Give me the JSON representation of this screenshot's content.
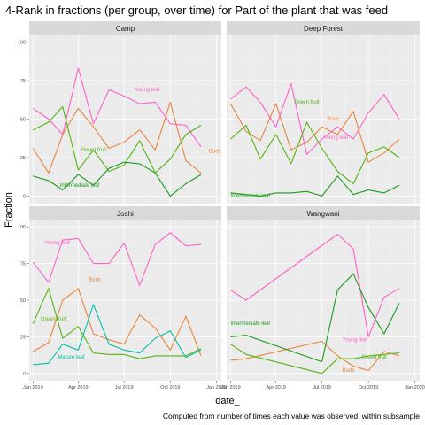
{
  "chart_data": {
    "type": "line",
    "title": "4-Rank in fractions (per group, over time) for Part of the plant that was feed",
    "xlabel": "date_",
    "ylabel": "Fraction",
    "caption": "Computed from number of times each value was observed, within subsample",
    "ylim": [
      0,
      100
    ],
    "yticks": [
      0,
      25,
      50,
      75,
      100
    ],
    "xlim": [
      "2019-01-01",
      "2020-01-01"
    ],
    "xticks": [
      "Jan 2019",
      "Apr 2019",
      "Jul 2019",
      "Oct 2019",
      "Jan 2020"
    ],
    "x": [
      "2019-01-01",
      "2019-02-01",
      "2019-03-01",
      "2019-04-01",
      "2019-05-01",
      "2019-06-01",
      "2019-07-01",
      "2019-08-01",
      "2019-09-01",
      "2019-10-01",
      "2019-11-01",
      "2019-12-01"
    ],
    "grid": true,
    "legend": "none",
    "colors": {
      "Young leaf": "#ff61c9",
      "Buds": "#f8766d",
      "Buds_orange": "#e8853b",
      "Green fruit": "#52b415",
      "Intermediate leaf": "#1a9b1a",
      "Mature leaf": "#00c0a7",
      "background": "#ebebeb",
      "strip": "#d9d9d9"
    },
    "panels": [
      {
        "name": "Camp",
        "series": [
          {
            "name": "Young leaf",
            "color": "#ff61c9",
            "labelled": true,
            "values": [
              57,
              50,
              40,
              83,
              47,
              69,
              65,
              60,
              61,
              47,
              46,
              32
            ]
          },
          {
            "name": "Buds",
            "color": "#e8853b",
            "labelled": true,
            "values": [
              31,
              15,
              40,
              57,
              45,
              31,
              35,
              43,
              30,
              61,
              23,
              15
            ]
          },
          {
            "name": "Green fruit",
            "color": "#52b415",
            "labelled": true,
            "values": [
              43,
              48,
              58,
              17,
              30,
              16,
              20,
              36,
              15,
              24,
              40,
              46
            ]
          },
          {
            "name": "Intermediate leaf",
            "color": "#1a9b1a",
            "labelled": true,
            "values": [
              13,
              10,
              4,
              14,
              7,
              18,
              22,
              21,
              15,
              0,
              8,
              14
            ]
          }
        ]
      },
      {
        "name": "Deep Forest",
        "series": [
          {
            "name": "Young leaf",
            "color": "#ff61c9",
            "labelled": true,
            "values": [
              63,
              71,
              61,
              45,
              73,
              27,
              37,
              45,
              37,
              54,
              66,
              50
            ]
          },
          {
            "name": "Buds",
            "color": "#e8853b",
            "labelled": true,
            "values": [
              60,
              42,
              36,
              60,
              30,
              35,
              45,
              40,
              55,
              22,
              28,
              37
            ]
          },
          {
            "name": "Green fruit",
            "color": "#52b415",
            "labelled": true,
            "values": [
              37,
              46,
              24,
              40,
              21,
              48,
              31,
              16,
              8,
              28,
              32,
              25
            ]
          },
          {
            "name": "Intermediate leaf",
            "color": "#1a9b1a",
            "labelled": true,
            "values": [
              2,
              1,
              0,
              2,
              2,
              3,
              0,
              13,
              1,
              4,
              2,
              7
            ]
          }
        ]
      },
      {
        "name": "Joshi",
        "series": [
          {
            "name": "Young leaf",
            "color": "#ff61c9",
            "labelled": true,
            "values": [
              76,
              62,
              91,
              92,
              75,
              75,
              89,
              60,
              88,
              96,
              87,
              88
            ]
          },
          {
            "name": "Buds",
            "color": "#e8853b",
            "labelled": true,
            "values": [
              15,
              21,
              50,
              58,
              27,
              23,
              20,
              40,
              31,
              16,
              39,
              12
            ]
          },
          {
            "name": "Green fruit",
            "color": "#52b415",
            "labelled": true,
            "values": [
              34,
              58,
              24,
              32,
              14,
              13,
              13,
              10,
              12,
              12,
              12,
              17
            ]
          },
          {
            "name": "Mature leaf",
            "color": "#00c0a7",
            "labelled": true,
            "values": [
              6,
              7,
              20,
              16,
              47,
              20,
              16,
              14,
              24,
              29,
              11,
              16
            ]
          }
        ]
      },
      {
        "name": "Wangwani",
        "series": [
          {
            "name": "Young leaf",
            "color": "#ff61c9",
            "labelled": true,
            "x": [
              "2019-01-01",
              "2019-02-01",
              "2019-08-01",
              "2019-09-01",
              "2019-10-01",
              "2019-11-01",
              "2019-12-01"
            ],
            "values": [
              57,
              50,
              95,
              85,
              25,
              52,
              58
            ]
          },
          {
            "name": "Buds",
            "color": "#e8853b",
            "labelled": true,
            "x": [
              "2019-01-01",
              "2019-02-01",
              "2019-07-01",
              "2019-08-01",
              "2019-09-01",
              "2019-10-01",
              "2019-11-01",
              "2019-12-01"
            ],
            "values": [
              9,
              10,
              22,
              12,
              5,
              2,
              15,
              12
            ]
          },
          {
            "name": "Green fruit",
            "color": "#52b415",
            "labelled": true,
            "x": [
              "2019-01-01",
              "2019-02-01",
              "2019-07-01",
              "2019-08-01",
              "2019-09-01",
              "2019-10-01",
              "2019-11-01",
              "2019-12-01"
            ],
            "values": [
              20,
              13,
              0,
              10,
              10,
              12,
              13,
              14
            ]
          },
          {
            "name": "Intermediate leaf",
            "color": "#1a9b1a",
            "labelled": true,
            "x": [
              "2019-01-01",
              "2019-02-01",
              "2019-07-01",
              "2019-08-01",
              "2019-09-01",
              "2019-10-01",
              "2019-11-01",
              "2019-12-01"
            ],
            "values": [
              25,
              26,
              8,
              57,
              68,
              45,
              27,
              48
            ]
          }
        ]
      }
    ]
  }
}
